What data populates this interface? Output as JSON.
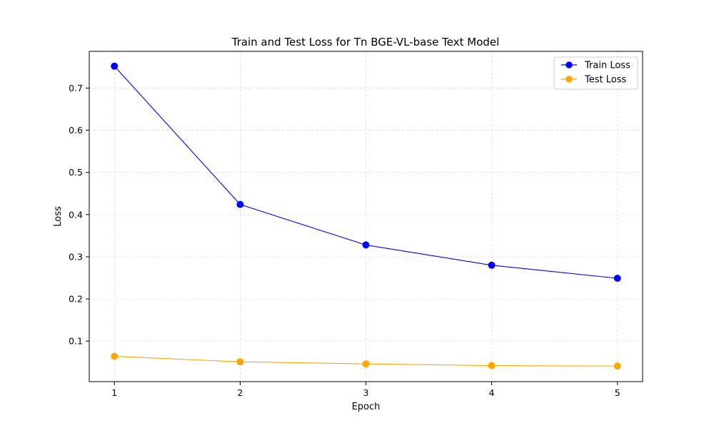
{
  "chart_data": {
    "type": "line",
    "title": "Train and Test Loss for Tn BGE-VL-base Text Model",
    "xlabel": "Epoch",
    "ylabel": "Loss",
    "x": [
      1,
      2,
      3,
      4,
      5
    ],
    "xticks": [
      "1",
      "2",
      "3",
      "4",
      "5"
    ],
    "yticks": [
      "0.1",
      "0.2",
      "0.3",
      "0.4",
      "0.5",
      "0.6",
      "0.7"
    ],
    "xlim": [
      0.8,
      5.2
    ],
    "ylim": [
      0.004,
      0.787
    ],
    "grid": true,
    "legend_position": "top-right",
    "series": [
      {
        "name": "Train Loss",
        "color": "#0000ff",
        "marker": "circle",
        "values": [
          0.752,
          0.424,
          0.328,
          0.28,
          0.249
        ]
      },
      {
        "name": "Test Loss",
        "color": "#ffa500",
        "marker": "circle",
        "values": [
          0.064,
          0.051,
          0.046,
          0.042,
          0.041
        ]
      }
    ]
  }
}
